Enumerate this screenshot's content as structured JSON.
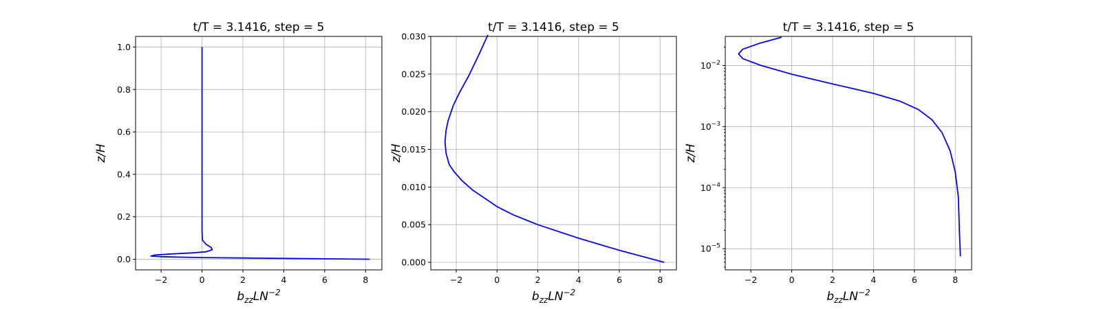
{
  "figure": {
    "line_color": "#0000ff",
    "grid": true
  },
  "chart_data": [
    {
      "type": "line",
      "title": "t/T = 3.1416, step = 5",
      "xlabel": "b_zz LN^-2",
      "ylabel": "z/H",
      "xlim": [
        -3.25,
        8.8
      ],
      "ylim": [
        -0.05,
        1.05
      ],
      "yscale": "linear",
      "xticks": [
        -2,
        0,
        2,
        4,
        6,
        8
      ],
      "xtick_labels": [
        "−2",
        "0",
        "2",
        "4",
        "6",
        "8"
      ],
      "yticks": [
        0.0,
        0.2,
        0.4,
        0.6,
        0.8,
        1.0
      ],
      "ytick_labels": [
        "0.0",
        "0.2",
        "0.4",
        "0.6",
        "0.8",
        "1.0"
      ],
      "x": [
        8.2,
        6.0,
        4.0,
        2.0,
        0.0,
        -1.0,
        -2.0,
        -2.5,
        -2.3,
        -1.5,
        -0.5,
        0.2,
        0.5,
        0.45,
        0.2,
        0.02,
        0.0,
        0.0,
        0.0,
        0.0,
        0.0,
        0.0,
        0.0
      ],
      "y": [
        0.0,
        0.002,
        0.004,
        0.006,
        0.008,
        0.01,
        0.012,
        0.015,
        0.02,
        0.025,
        0.03,
        0.035,
        0.045,
        0.055,
        0.07,
        0.09,
        0.13,
        0.2,
        0.4,
        0.6,
        0.8,
        0.95,
        1.0
      ]
    },
    {
      "type": "line",
      "title": "t/T = 3.1416, step = 5",
      "xlabel": "b_zz LN^-2",
      "ylabel": "z/H",
      "xlim": [
        -3.25,
        8.8
      ],
      "ylim": [
        -0.001,
        0.03
      ],
      "yscale": "linear",
      "xticks": [
        -2,
        0,
        2,
        4,
        6,
        8
      ],
      "xtick_labels": [
        "−2",
        "0",
        "2",
        "4",
        "6",
        "8"
      ],
      "yticks": [
        0.0,
        0.005,
        0.01,
        0.015,
        0.02,
        0.025,
        0.03
      ],
      "ytick_labels": [
        "0.000",
        "0.005",
        "0.010",
        "0.015",
        "0.020",
        "0.025",
        "0.030"
      ],
      "x": [
        8.2,
        6.0,
        4.0,
        2.0,
        0.8,
        0.0,
        -0.6,
        -1.2,
        -1.7,
        -2.1,
        -2.35,
        -2.5,
        -2.55,
        -2.5,
        -2.4,
        -2.15,
        -1.85,
        -1.4,
        -0.9,
        -0.45
      ],
      "y": [
        0.0,
        0.0016,
        0.0032,
        0.005,
        0.0063,
        0.0074,
        0.0085,
        0.0096,
        0.0108,
        0.012,
        0.013,
        0.0145,
        0.016,
        0.0175,
        0.0188,
        0.0208,
        0.0225,
        0.0247,
        0.0275,
        0.0302
      ]
    },
    {
      "type": "line",
      "title": "t/T = 3.1416, step = 5",
      "xlabel": "b_zz LN^-2",
      "ylabel": "z/H",
      "xlim": [
        -3.25,
        8.8
      ],
      "ylim": [
        4.5e-06,
        0.03
      ],
      "yscale": "log",
      "xticks": [
        -2,
        0,
        2,
        4,
        6,
        8
      ],
      "xtick_labels": [
        "−2",
        "0",
        "2",
        "4",
        "6",
        "8"
      ],
      "yticks": [
        1e-05,
        0.0001,
        0.001,
        0.01
      ],
      "ytick_labels": [
        [
          "10",
          "−5"
        ],
        [
          "10",
          "−4"
        ],
        [
          "10",
          "−3"
        ],
        [
          "10",
          "−2"
        ]
      ],
      "x": [
        8.25,
        8.2,
        8.15,
        8.0,
        7.75,
        7.35,
        6.85,
        6.2,
        5.3,
        4.0,
        2.0,
        0.0,
        -1.5,
        -2.4,
        -2.6,
        -2.4,
        -1.6,
        -0.5
      ],
      "y": [
        7.5e-06,
        2e-05,
        7e-05,
        0.00018,
        0.0004,
        0.0008,
        0.0013,
        0.0019,
        0.0026,
        0.0035,
        0.005,
        0.0072,
        0.01,
        0.013,
        0.0155,
        0.0185,
        0.023,
        0.029
      ]
    }
  ]
}
